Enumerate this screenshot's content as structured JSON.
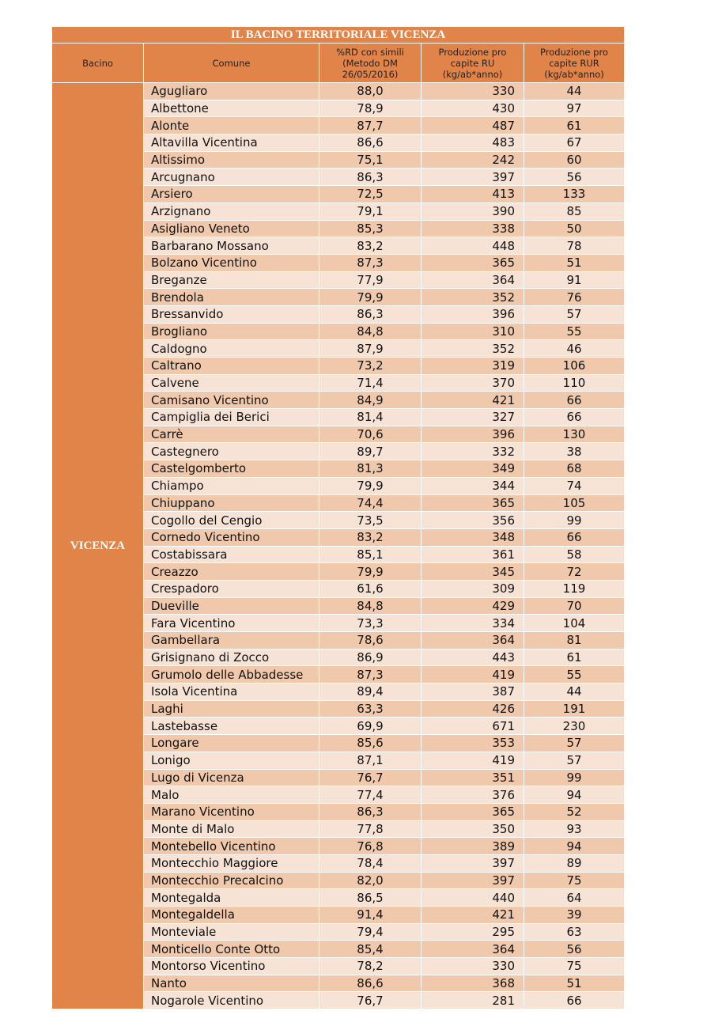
{
  "title": "IL BACINO TERRITORIALE VICENZA",
  "headers": {
    "bacino": "Bacino",
    "comune": "Comune",
    "rd": [
      "%RD con simili",
      "(Metodo DM",
      "26/05/2016)"
    ],
    "ru": [
      "Produzione pro",
      "capite RU",
      "(kg/ab*anno)"
    ],
    "rur": [
      "Produzione pro",
      "capite RUR",
      "(kg/ab*anno)"
    ]
  },
  "bacino": "VICENZA",
  "colors": {
    "header": "#E08449",
    "row_dark": "#F0C9AC",
    "row_light": "#F7E3D6"
  },
  "rows": [
    [
      "Agugliaro",
      "88,0",
      "330",
      "44"
    ],
    [
      "Albettone",
      "78,9",
      "430",
      "97"
    ],
    [
      "Alonte",
      "87,7",
      "487",
      "61"
    ],
    [
      "Altavilla Vicentina",
      "86,6",
      "483",
      "67"
    ],
    [
      "Altissimo",
      "75,1",
      "242",
      "60"
    ],
    [
      "Arcugnano",
      "86,3",
      "397",
      "56"
    ],
    [
      "Arsiero",
      "72,5",
      "413",
      "133"
    ],
    [
      "Arzignano",
      "79,1",
      "390",
      "85"
    ],
    [
      "Asigliano Veneto",
      "85,3",
      "338",
      "50"
    ],
    [
      "Barbarano Mossano",
      "83,2",
      "448",
      "78"
    ],
    [
      "Bolzano Vicentino",
      "87,3",
      "365",
      "51"
    ],
    [
      "Breganze",
      "77,9",
      "364",
      "91"
    ],
    [
      "Brendola",
      "79,9",
      "352",
      "76"
    ],
    [
      "Bressanvido",
      "86,3",
      "396",
      "57"
    ],
    [
      "Brogliano",
      "84,8",
      "310",
      "55"
    ],
    [
      "Caldogno",
      "87,9",
      "352",
      "46"
    ],
    [
      "Caltrano",
      "73,2",
      "319",
      "106"
    ],
    [
      "Calvene",
      "71,4",
      "370",
      "110"
    ],
    [
      "Camisano Vicentino",
      "84,9",
      "421",
      "66"
    ],
    [
      "Campiglia dei Berici",
      "81,4",
      "327",
      "66"
    ],
    [
      "Carrè",
      "70,6",
      "396",
      "130"
    ],
    [
      "Castegnero",
      "89,7",
      "332",
      "38"
    ],
    [
      "Castelgomberto",
      "81,3",
      "349",
      "68"
    ],
    [
      "Chiampo",
      "79,9",
      "344",
      "74"
    ],
    [
      "Chiuppano",
      "74,4",
      "365",
      "105"
    ],
    [
      "Cogollo del Cengio",
      "73,5",
      "356",
      "99"
    ],
    [
      "Cornedo Vicentino",
      "83,2",
      "348",
      "66"
    ],
    [
      "Costabissara",
      "85,1",
      "361",
      "58"
    ],
    [
      "Creazzo",
      "79,9",
      "345",
      "72"
    ],
    [
      "Crespadoro",
      "61,6",
      "309",
      "119"
    ],
    [
      "Dueville",
      "84,8",
      "429",
      "70"
    ],
    [
      "Fara Vicentino",
      "73,3",
      "334",
      "104"
    ],
    [
      "Gambellara",
      "78,6",
      "364",
      "81"
    ],
    [
      "Grisignano di Zocco",
      "86,9",
      "443",
      "61"
    ],
    [
      "Grumolo delle Abbadesse",
      "87,3",
      "419",
      "55"
    ],
    [
      "Isola Vicentina",
      "89,4",
      "387",
      "44"
    ],
    [
      "Laghi",
      "63,3",
      "426",
      "191"
    ],
    [
      "Lastebasse",
      "69,9",
      "671",
      "230"
    ],
    [
      "Longare",
      "85,6",
      "353",
      "57"
    ],
    [
      "Lonigo",
      "87,1",
      "419",
      "57"
    ],
    [
      "Lugo di Vicenza",
      "76,7",
      "351",
      "99"
    ],
    [
      "Malo",
      "77,4",
      "376",
      "94"
    ],
    [
      "Marano Vicentino",
      "86,3",
      "365",
      "52"
    ],
    [
      "Monte di Malo",
      "77,8",
      "350",
      "93"
    ],
    [
      "Montebello Vicentino",
      "76,8",
      "389",
      "94"
    ],
    [
      "Montecchio Maggiore",
      "78,4",
      "397",
      "89"
    ],
    [
      "Montecchio Precalcino",
      "82,0",
      "397",
      "75"
    ],
    [
      "Montegalda",
      "86,5",
      "440",
      "64"
    ],
    [
      "Montegaldella",
      "91,4",
      "421",
      "39"
    ],
    [
      "Monteviale",
      "79,4",
      "295",
      "63"
    ],
    [
      "Monticello Conte Otto",
      "85,4",
      "364",
      "56"
    ],
    [
      "Montorso Vicentino",
      "78,2",
      "330",
      "75"
    ],
    [
      "Nanto",
      "86,6",
      "368",
      "51"
    ],
    [
      "Nogarole Vicentino",
      "76,7",
      "281",
      "66"
    ]
  ]
}
